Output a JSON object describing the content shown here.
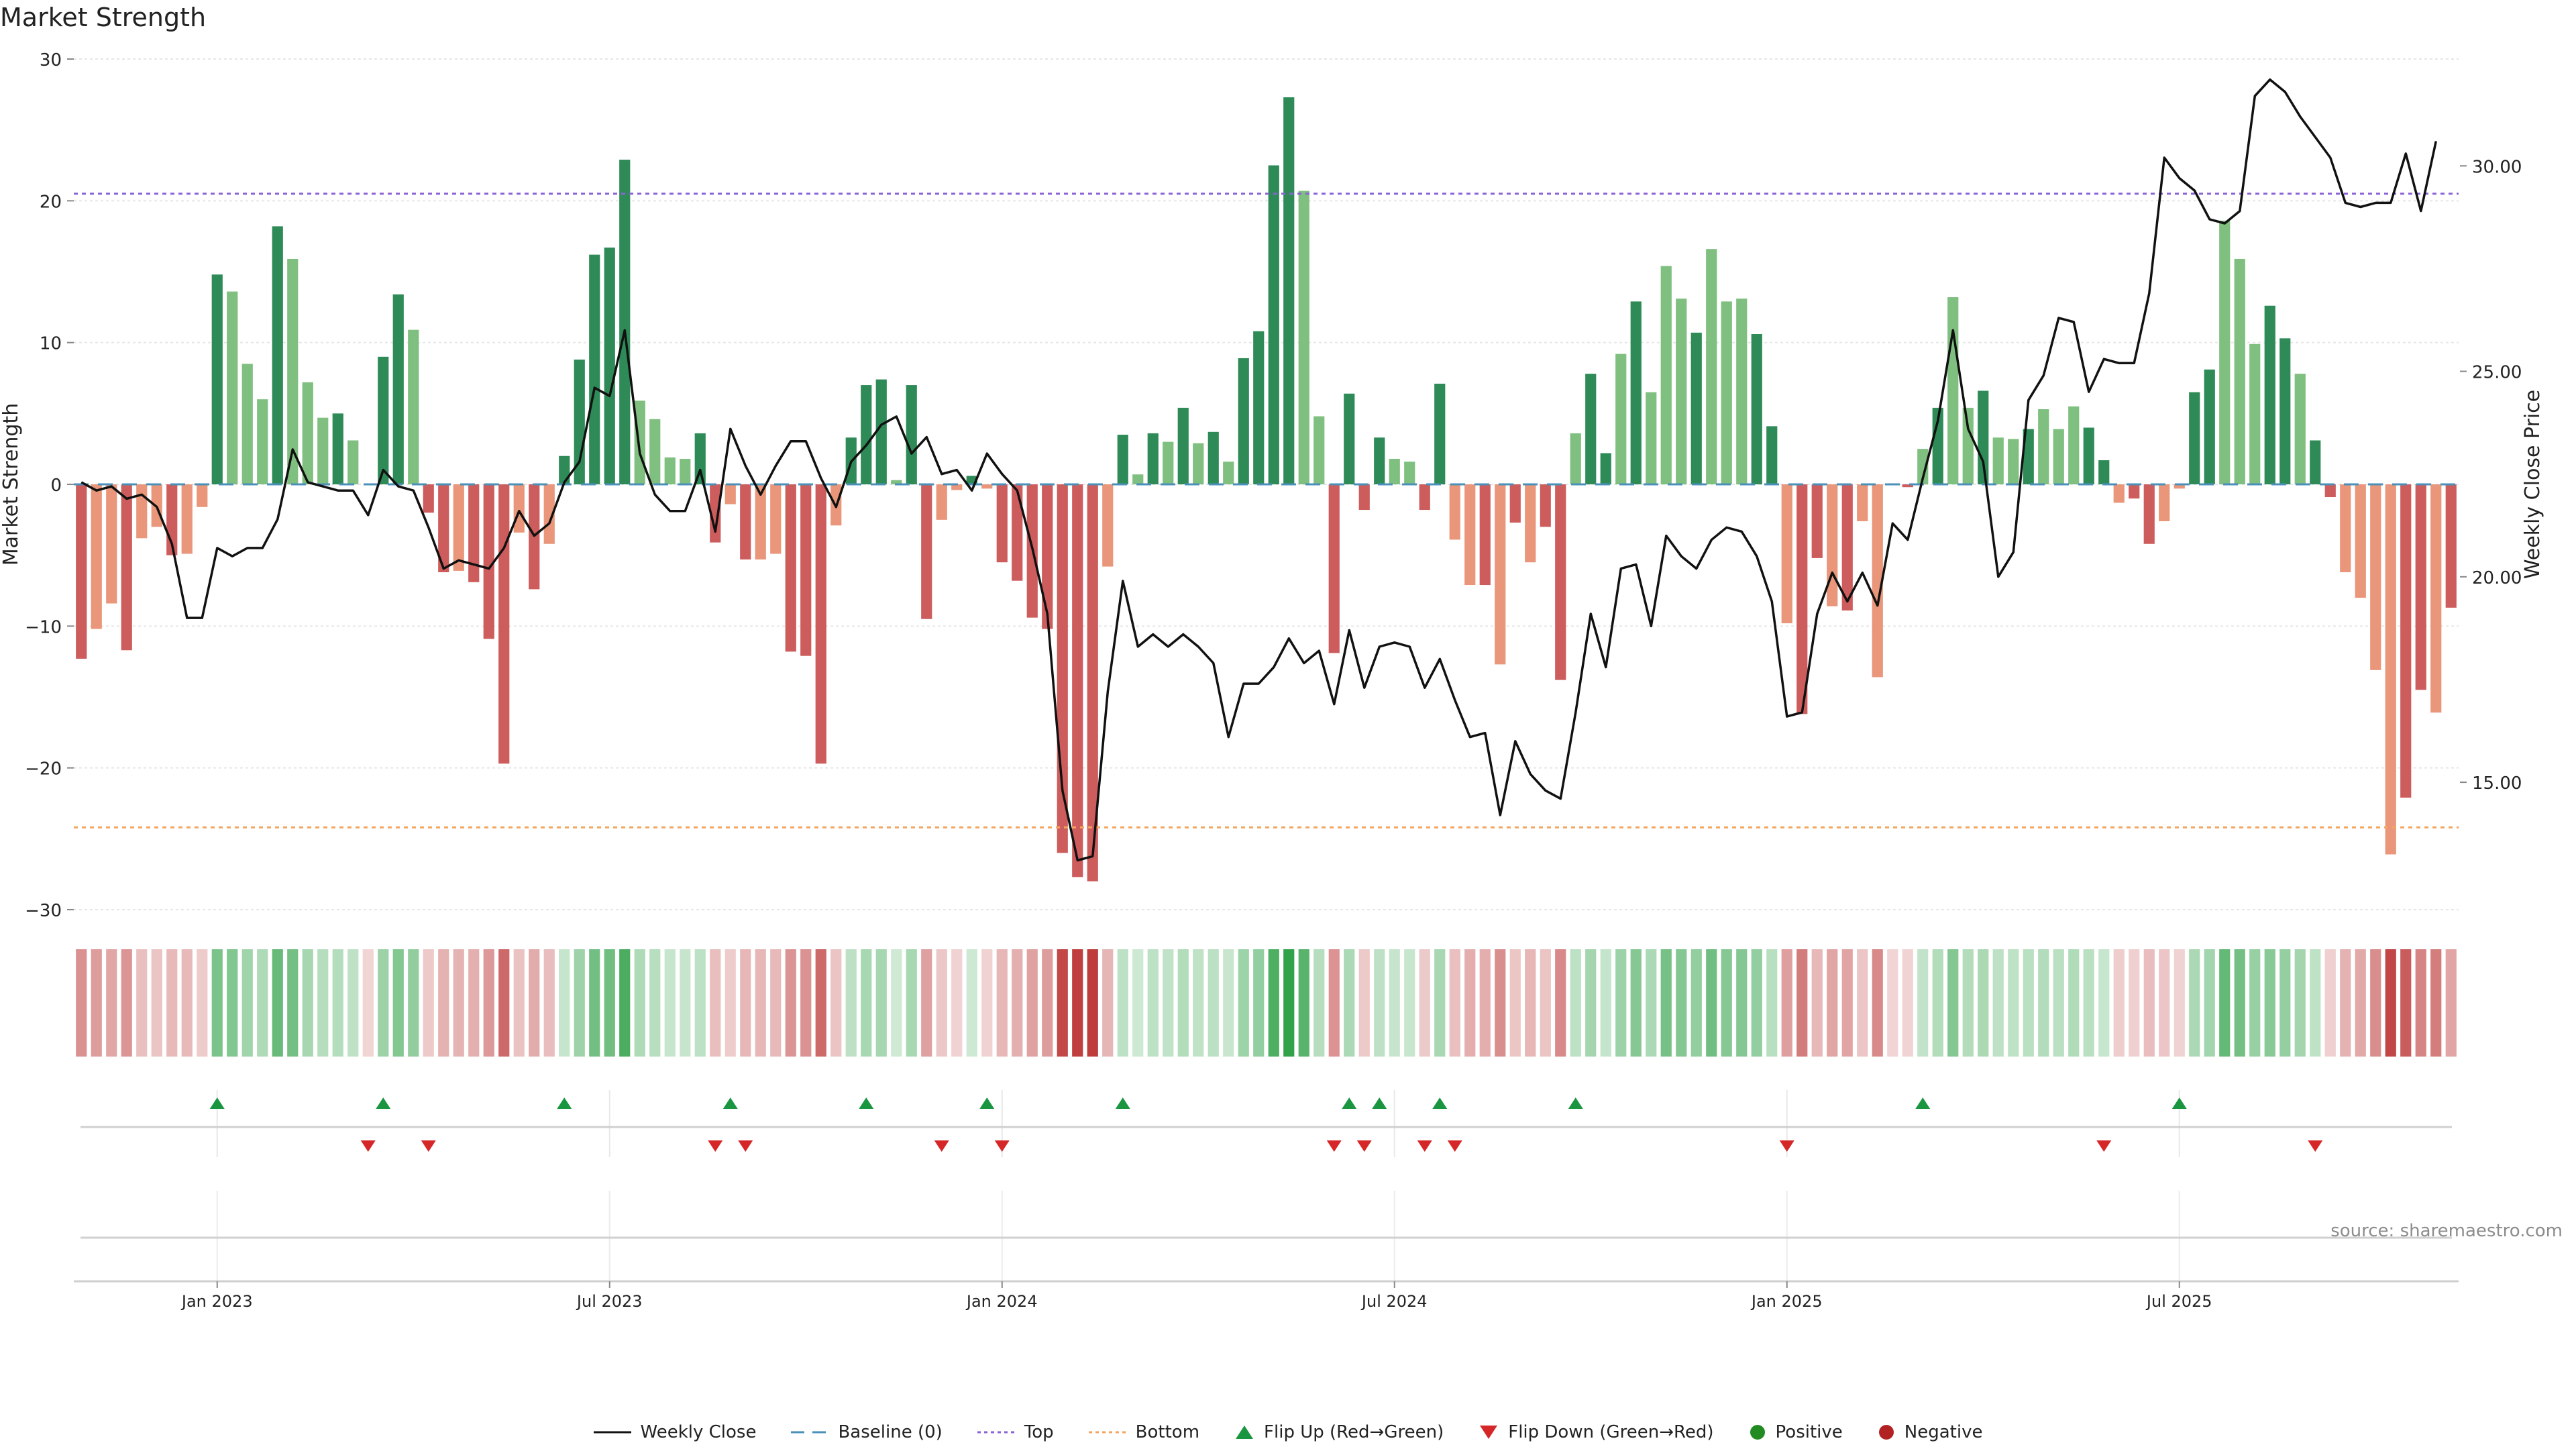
{
  "title": "Market Strength",
  "source_note": "source: sharemaestro.com",
  "colors": {
    "strong_green": "#2e8b57",
    "light_green": "#7fbf7f",
    "strong_red": "#cd5c5c",
    "light_red": "#e9967a",
    "price_line": "#111111",
    "top_line": "#8a62d6",
    "bottom_line": "#f4a460",
    "baseline": "#4a90b8",
    "flip_up": "#1a9641",
    "flip_down": "#d62728",
    "positive": "#228b22",
    "negative": "#b22222"
  },
  "chart_data": {
    "type": "bar+line",
    "title": "Market Strength",
    "ylabel_left": "Market Strength",
    "ylabel_right": "Weekly Close Price",
    "ylim_left": [
      -30,
      30
    ],
    "yticks_left": [
      30,
      20,
      10,
      0,
      -10,
      -20,
      -30
    ],
    "ylim_right": [
      11.9,
      32.6
    ],
    "yticks_right": [
      30,
      25,
      20,
      15
    ],
    "ytick_labels_right": [
      "30.00",
      "25.00",
      "20.00",
      "15.00"
    ],
    "top_threshold": 20.5,
    "bottom_threshold": -24.2,
    "x_ticks": [
      {
        "label": "Jan 2023",
        "week": 9
      },
      {
        "label": "Jul 2023",
        "week": 35
      },
      {
        "label": "Jan 2024",
        "week": 61
      },
      {
        "label": "Jul 2024",
        "week": 87
      },
      {
        "label": "Jan 2025",
        "week": 113
      },
      {
        "label": "Jul 2025",
        "week": 139
      }
    ],
    "strength": [
      -12.3,
      -10.2,
      -8.4,
      -11.7,
      -3.8,
      -3.0,
      -5.0,
      -4.9,
      -1.6,
      14.8,
      13.6,
      8.5,
      6.0,
      18.2,
      15.9,
      7.2,
      4.7,
      5.0,
      3.1,
      0,
      9.0,
      13.4,
      10.9,
      -2.0,
      -6.2,
      -6.1,
      -6.9,
      -10.9,
      -19.7,
      -3.4,
      -7.4,
      -4.2,
      2.0,
      8.8,
      16.2,
      16.7,
      22.9,
      5.9,
      4.6,
      1.9,
      1.8,
      3.6,
      -4.1,
      -1.4,
      -5.3,
      -5.3,
      -4.9,
      -11.8,
      -12.1,
      -19.7,
      -2.9,
      3.3,
      7.0,
      7.4,
      0.3,
      7.0,
      -9.5,
      -2.5,
      -0.4,
      0.6,
      -0.3,
      -5.5,
      -6.8,
      -9.4,
      -10.2,
      -26.0,
      -27.7,
      -28.0,
      -5.8,
      3.5,
      0.7,
      3.6,
      3.0,
      5.4,
      2.9,
      3.7,
      1.6,
      8.9,
      10.8,
      22.5,
      27.3,
      20.7,
      4.8,
      -11.9,
      6.4,
      -1.8,
      3.3,
      1.8,
      1.6,
      -1.8,
      7.1,
      -3.9,
      -7.1,
      -7.1,
      -12.7,
      -2.7,
      -5.5,
      -3.0,
      -13.8,
      3.6,
      7.8,
      2.2,
      9.2,
      12.9,
      6.5,
      15.4,
      13.1,
      10.7,
      16.6,
      12.9,
      13.1,
      10.6,
      4.1,
      -9.8,
      -16.2,
      -5.2,
      -8.6,
      -8.9,
      -2.6,
      -13.6,
      0,
      -0.2,
      2.5,
      5.4,
      13.2,
      5.4,
      6.6,
      3.3,
      3.2,
      3.9,
      5.3,
      3.9,
      5.5,
      4.0,
      1.7,
      -1.3,
      -1.0,
      -4.2,
      -2.6,
      -0.3,
      6.5,
      8.1,
      18.6,
      15.9,
      9.9,
      12.6,
      10.3,
      7.8,
      3.1,
      -0.9,
      -6.2,
      -8.0,
      -13.1,
      -26.1,
      -22.1,
      -14.5,
      -16.1,
      -8.7
    ],
    "shade": [
      1,
      0,
      0,
      1,
      0,
      0,
      1,
      0,
      0,
      1,
      0,
      0,
      0,
      1,
      0,
      0,
      0,
      1,
      0,
      0,
      1,
      1,
      0,
      1,
      1,
      0,
      1,
      1,
      1,
      0,
      1,
      0,
      1,
      1,
      1,
      1,
      1,
      0,
      0,
      0,
      0,
      1,
      1,
      0,
      1,
      0,
      0,
      1,
      1,
      1,
      0,
      1,
      1,
      1,
      0,
      1,
      1,
      0,
      0,
      1,
      0,
      1,
      1,
      1,
      1,
      1,
      1,
      1,
      0,
      1,
      0,
      1,
      0,
      1,
      0,
      1,
      0,
      1,
      1,
      1,
      1,
      0,
      0,
      1,
      1,
      1,
      1,
      0,
      0,
      1,
      1,
      0,
      0,
      1,
      0,
      1,
      0,
      1,
      1,
      0,
      1,
      1,
      0,
      1,
      0,
      0,
      0,
      1,
      0,
      0,
      0,
      1,
      1,
      0,
      1,
      1,
      0,
      1,
      0,
      0,
      1,
      1,
      0,
      1,
      0,
      0,
      1,
      0,
      0,
      1,
      0,
      0,
      0,
      1,
      1,
      0,
      1,
      1,
      0,
      0,
      1,
      1,
      0,
      0,
      0,
      1,
      1,
      0,
      1,
      1,
      0,
      0,
      0,
      0,
      1,
      1,
      0,
      1,
      0,
      0
    ],
    "weekly_close": [
      22.3,
      22.1,
      22.2,
      21.9,
      22.0,
      21.7,
      20.8,
      19.0,
      19.0,
      20.7,
      20.5,
      20.7,
      20.7,
      21.4,
      23.1,
      22.3,
      22.2,
      22.1,
      22.1,
      21.5,
      22.6,
      22.2,
      22.1,
      21.2,
      20.2,
      20.4,
      20.3,
      20.2,
      20.7,
      21.6,
      21.0,
      21.3,
      22.3,
      22.8,
      24.6,
      24.4,
      26.0,
      23.0,
      22.0,
      21.6,
      21.6,
      22.6,
      21.1,
      23.6,
      22.7,
      22.0,
      22.7,
      23.3,
      23.3,
      22.4,
      21.7,
      22.8,
      23.2,
      23.7,
      23.9,
      23.0,
      23.4,
      22.5,
      22.6,
      22.1,
      23.0,
      22.5,
      22.1,
      20.7,
      19.1,
      14.8,
      13.1,
      13.2,
      17.2,
      19.9,
      18.3,
      18.6,
      18.3,
      18.6,
      18.3,
      17.9,
      16.1,
      17.4,
      17.4,
      17.8,
      18.5,
      17.9,
      18.2,
      16.9,
      18.7,
      17.3,
      18.3,
      18.4,
      18.3,
      17.3,
      18.0,
      17.0,
      16.1,
      16.2,
      14.2,
      16.0,
      15.2,
      14.8,
      14.6,
      16.7,
      19.1,
      17.8,
      20.2,
      20.3,
      18.8,
      21.0,
      20.5,
      20.2,
      20.9,
      21.2,
      21.1,
      20.5,
      19.4,
      16.6,
      16.7,
      19.1,
      20.1,
      19.4,
      20.1,
      19.3,
      21.3,
      20.9,
      22.4,
      23.8,
      26.0,
      23.6,
      22.8,
      20.0,
      20.6,
      24.3,
      24.9,
      26.3,
      26.2,
      24.5,
      25.3,
      25.2,
      25.2,
      26.9,
      30.2,
      29.7,
      29.4,
      28.7,
      28.6,
      28.9,
      31.7,
      32.1,
      31.8,
      31.2,
      30.7,
      30.2,
      29.1,
      29.0,
      29.1,
      29.1,
      30.3,
      28.9,
      30.6
    ],
    "flip_up_weeks": [
      9,
      20,
      32,
      43,
      52,
      60,
      69,
      84,
      86,
      90,
      99,
      122,
      139
    ],
    "flip_down_weeks": [
      19,
      23,
      42,
      44,
      57,
      61,
      83,
      85,
      89,
      91,
      113,
      134,
      148
    ],
    "series": [
      {
        "name": "Market Strength",
        "kind": "bar"
      },
      {
        "name": "Weekly Close",
        "kind": "line"
      }
    ]
  },
  "legend": [
    {
      "key": "close",
      "label": "Weekly Close"
    },
    {
      "key": "baseline",
      "label": "Baseline (0)"
    },
    {
      "key": "top",
      "label": "Top"
    },
    {
      "key": "bottom",
      "label": "Bottom"
    },
    {
      "key": "flip_up",
      "label": "Flip Up (Red→Green)"
    },
    {
      "key": "flip_down",
      "label": "Flip Down (Green→Red)"
    },
    {
      "key": "positive",
      "label": "Positive"
    },
    {
      "key": "negative",
      "label": "Negative"
    }
  ]
}
